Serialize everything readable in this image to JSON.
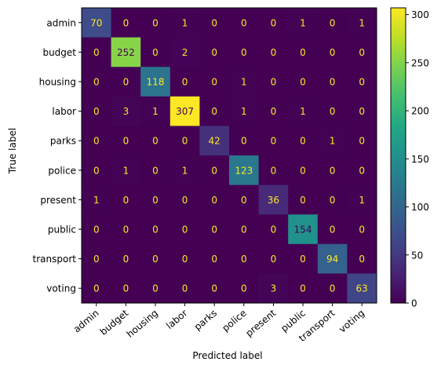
{
  "chart_data": {
    "type": "heatmap",
    "title": "",
    "xlabel": "Predicted label",
    "ylabel": "True label",
    "labels": [
      "admin",
      "budget",
      "housing",
      "labor",
      "parks",
      "police",
      "present",
      "public",
      "transport",
      "voting"
    ],
    "matrix": [
      [
        70,
        0,
        0,
        1,
        0,
        0,
        0,
        1,
        0,
        1
      ],
      [
        0,
        252,
        0,
        2,
        0,
        0,
        0,
        0,
        0,
        0
      ],
      [
        0,
        0,
        118,
        0,
        0,
        1,
        0,
        0,
        0,
        0
      ],
      [
        0,
        3,
        1,
        307,
        0,
        1,
        0,
        1,
        0,
        0
      ],
      [
        0,
        0,
        0,
        0,
        42,
        0,
        0,
        0,
        1,
        0
      ],
      [
        0,
        1,
        0,
        1,
        0,
        123,
        0,
        0,
        0,
        0
      ],
      [
        1,
        0,
        0,
        0,
        0,
        0,
        36,
        0,
        0,
        1
      ],
      [
        0,
        0,
        0,
        0,
        0,
        0,
        0,
        154,
        0,
        0
      ],
      [
        0,
        0,
        0,
        0,
        0,
        0,
        0,
        0,
        94,
        0
      ],
      [
        0,
        0,
        0,
        0,
        0,
        0,
        3,
        0,
        0,
        63
      ]
    ],
    "colorbar": {
      "colormap": "viridis",
      "range": [
        0,
        307
      ],
      "ticks": [
        0,
        50,
        100,
        150,
        200,
        250,
        300
      ]
    },
    "grid": false
  }
}
